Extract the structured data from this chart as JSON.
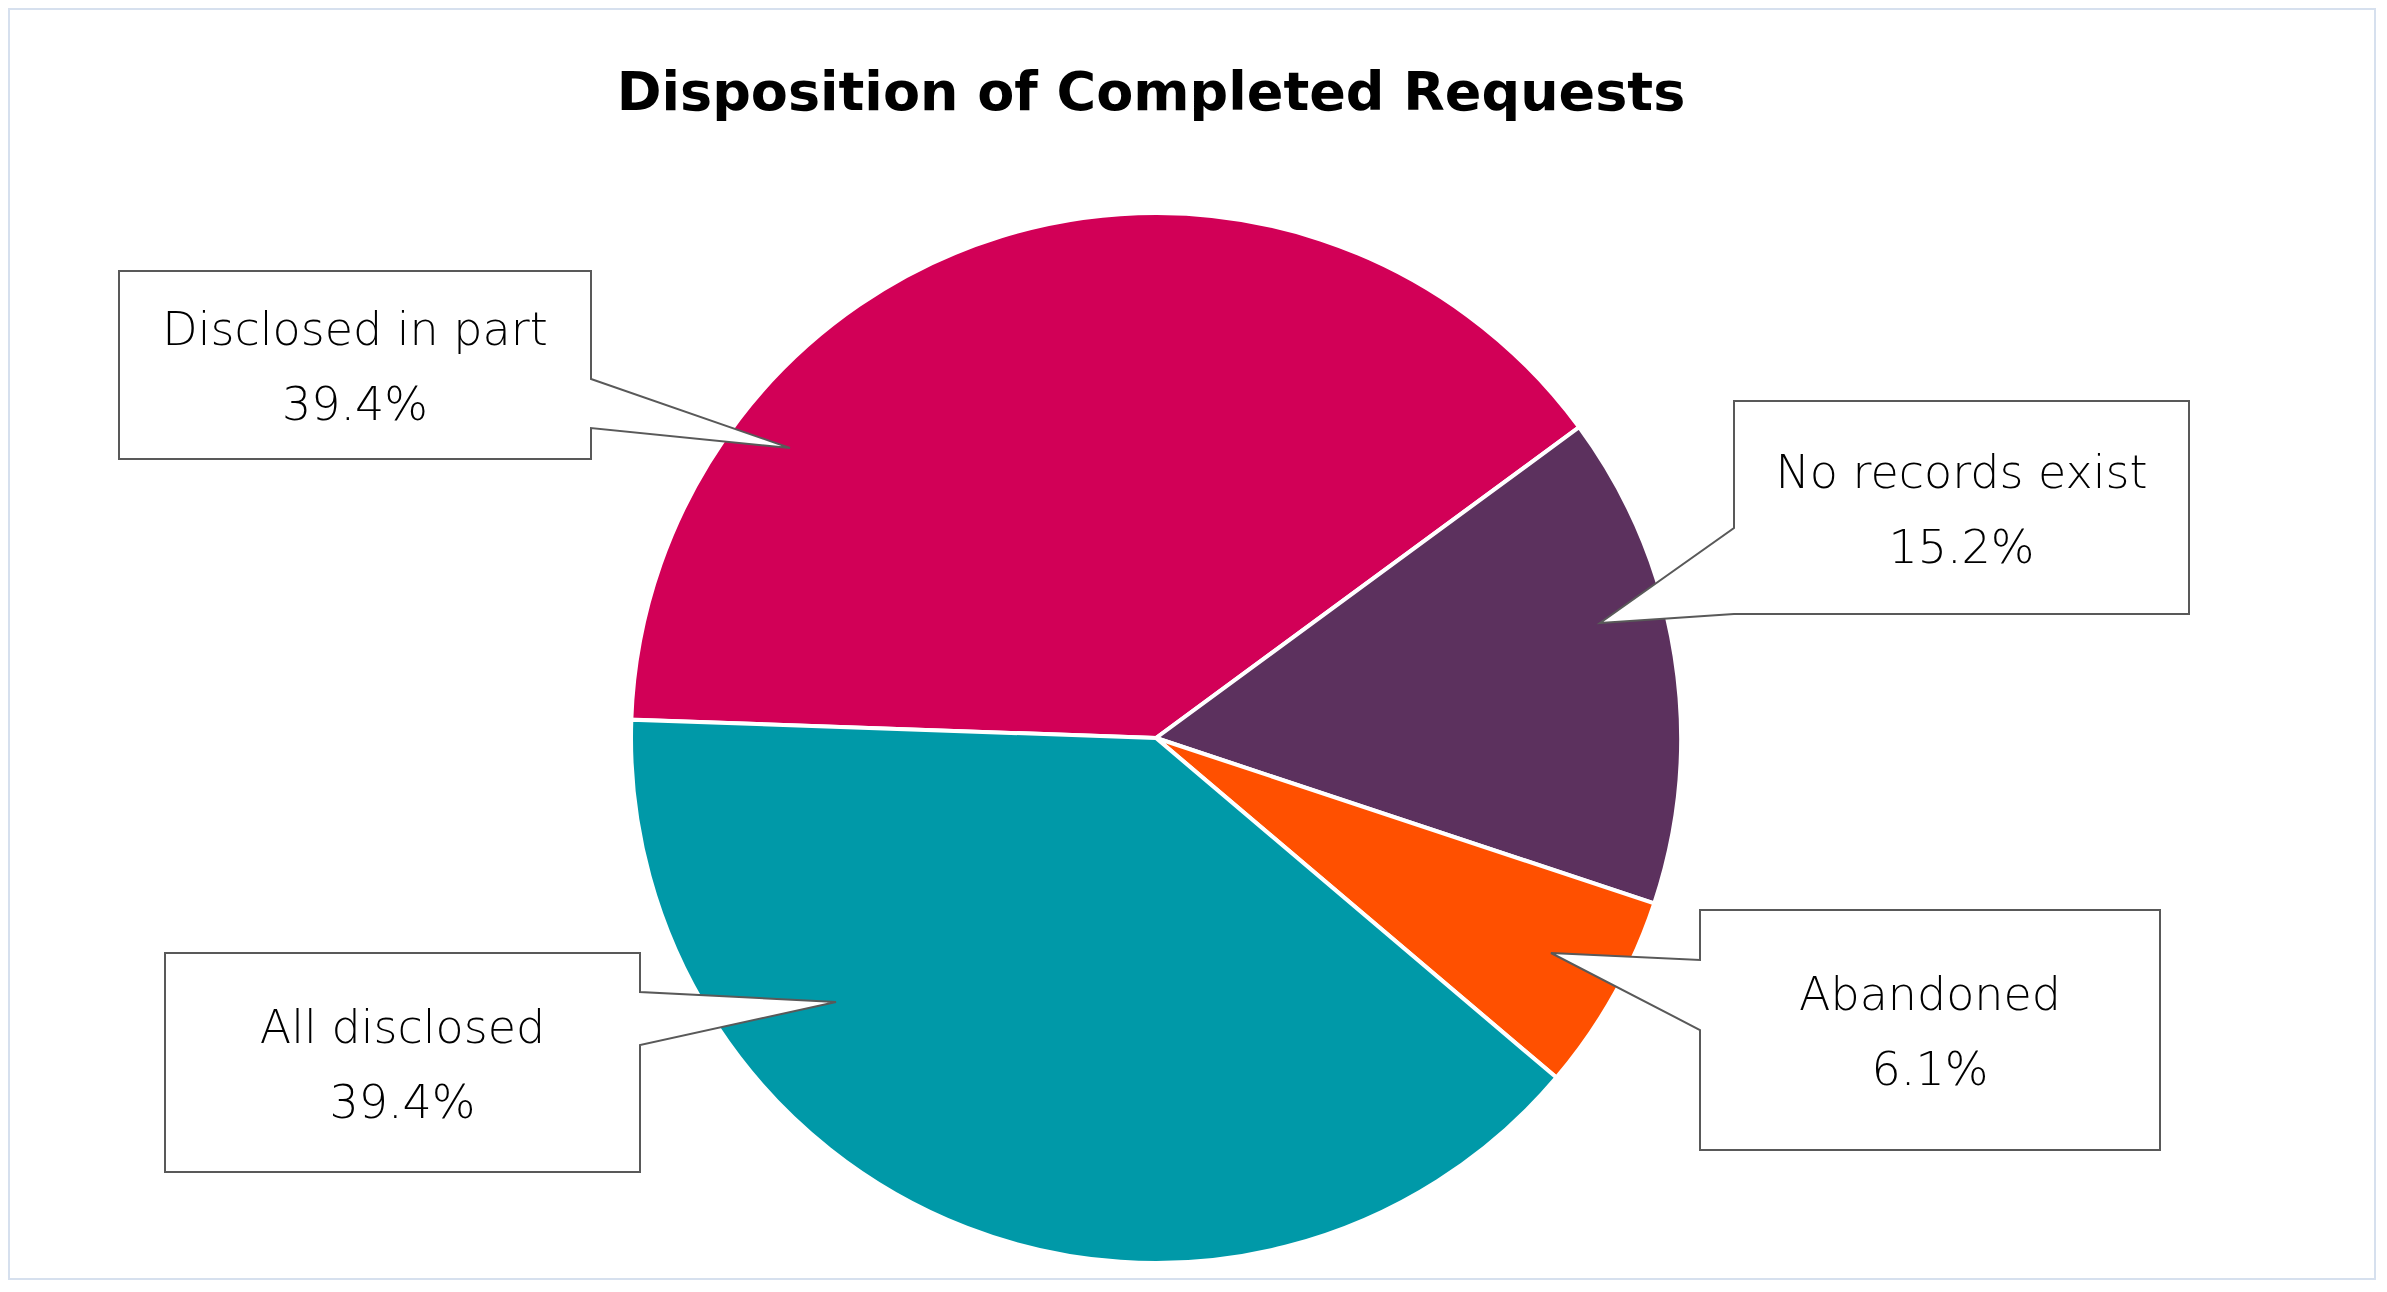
{
  "chart_data": {
    "type": "pie",
    "title": "Disposition of Completed Requests",
    "categories": [
      "Disclosed in part",
      "No records exist",
      "Abandoned",
      "All disclosed"
    ],
    "values": [
      39.4,
      15.2,
      6.1,
      39.4
    ],
    "value_labels": [
      "39.4%",
      "15.2%",
      "6.1%",
      "39.4%"
    ],
    "colors": [
      "#d20057",
      "#5c315e",
      "#ff5000",
      "#0099a8"
    ],
    "legend": false
  }
}
